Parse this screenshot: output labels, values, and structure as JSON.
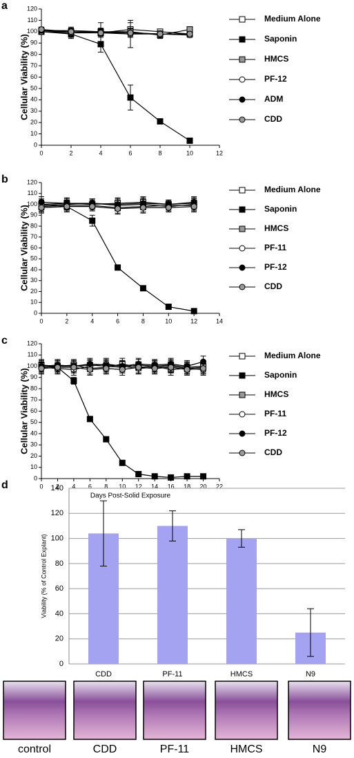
{
  "chart_data": [
    {
      "type": "line",
      "panel_label": "a",
      "y_label": "Cellular Viability (%)",
      "x": [
        0,
        2,
        4,
        6,
        8,
        10
      ],
      "xlim": [
        0,
        12
      ],
      "xticks": [
        0,
        2,
        4,
        6,
        8,
        10,
        12
      ],
      "ylim": [
        0,
        120
      ],
      "yticks": [
        0,
        10,
        20,
        30,
        40,
        50,
        60,
        70,
        80,
        90,
        100,
        110,
        120
      ],
      "series": [
        {
          "name": "Medium Alone",
          "marker": "square",
          "color": "#ffffff",
          "values": [
            100,
            100,
            99,
            102,
            100,
            98
          ],
          "errors": [
            2,
            3,
            4,
            6,
            2,
            2
          ]
        },
        {
          "name": "Saponin",
          "marker": "square",
          "color": "#000000",
          "values": [
            100,
            98,
            89,
            42,
            21,
            4
          ],
          "errors": [
            2,
            4,
            7,
            11,
            2,
            1
          ]
        },
        {
          "name": "HMCS",
          "marker": "square",
          "color": "#999999",
          "values": [
            101,
            100,
            100,
            100,
            97,
            102
          ],
          "errors": [
            3,
            3,
            3,
            3,
            3,
            2
          ]
        },
        {
          "name": "PF-12",
          "marker": "circle",
          "color": "#ffffff",
          "values": [
            100,
            99,
            99,
            98,
            98,
            97
          ],
          "errors": [
            2,
            4,
            9,
            12,
            3,
            2
          ]
        },
        {
          "name": "ADM",
          "marker": "circle",
          "color": "#000000",
          "values": [
            101,
            101,
            100,
            99,
            98,
            98
          ],
          "errors": [
            2,
            3,
            3,
            4,
            2,
            2
          ]
        },
        {
          "name": "CDD",
          "marker": "circle",
          "color": "#999999",
          "values": [
            102,
            100,
            99,
            99,
            98,
            98
          ],
          "errors": [
            2,
            3,
            3,
            4,
            2,
            2
          ]
        }
      ]
    },
    {
      "type": "line",
      "panel_label": "b",
      "y_label": "Cellular Viability (%)",
      "x": [
        0,
        2,
        4,
        6,
        8,
        10,
        12
      ],
      "xlim": [
        0,
        14
      ],
      "xticks": [
        0,
        2,
        4,
        6,
        8,
        10,
        12,
        14
      ],
      "ylim": [
        0,
        120
      ],
      "yticks": [
        0,
        10,
        20,
        30,
        40,
        50,
        60,
        70,
        80,
        90,
        100,
        110,
        120
      ],
      "series": [
        {
          "name": "Medium Alone",
          "marker": "square",
          "color": "#ffffff",
          "values": [
            100,
            101,
            100,
            101,
            102,
            100,
            101
          ],
          "errors": [
            5,
            5,
            4,
            5,
            5,
            4,
            5
          ]
        },
        {
          "name": "Saponin",
          "marker": "square",
          "color": "#000000",
          "values": [
            100,
            98,
            85,
            42,
            23,
            6,
            2
          ],
          "errors": [
            3,
            4,
            5,
            2,
            1,
            1,
            1
          ]
        },
        {
          "name": "HMCS",
          "marker": "square",
          "color": "#999999",
          "values": [
            98,
            99,
            99,
            97,
            98,
            99,
            99
          ],
          "errors": [
            5,
            5,
            4,
            5,
            5,
            4,
            5
          ]
        },
        {
          "name": "PF-11",
          "marker": "circle",
          "color": "#ffffff",
          "values": [
            99,
            100,
            101,
            99,
            100,
            98,
            100
          ],
          "errors": [
            5,
            5,
            4,
            5,
            5,
            4,
            5
          ]
        },
        {
          "name": "PF-12",
          "marker": "circle",
          "color": "#000000",
          "values": [
            102,
            101,
            101,
            100,
            101,
            100,
            102
          ],
          "errors": [
            5,
            5,
            4,
            5,
            5,
            4,
            5
          ]
        },
        {
          "name": "CDD",
          "marker": "circle",
          "color": "#999999",
          "values": [
            97,
            98,
            98,
            96,
            97,
            97,
            98
          ],
          "errors": [
            5,
            5,
            4,
            5,
            5,
            4,
            5
          ]
        }
      ]
    },
    {
      "type": "line",
      "panel_label": "c",
      "y_label": "Cellular Viability (%)",
      "x_label": "Days Post-Solid Exposure",
      "x": [
        0,
        2,
        4,
        6,
        8,
        10,
        12,
        14,
        16,
        18,
        20
      ],
      "xlim": [
        0,
        22
      ],
      "xticks": [
        0,
        2,
        4,
        6,
        8,
        10,
        12,
        14,
        16,
        18,
        20,
        22
      ],
      "ylim": [
        0,
        120
      ],
      "yticks": [
        0,
        10,
        20,
        30,
        40,
        50,
        60,
        70,
        80,
        90,
        100,
        110,
        120
      ],
      "series": [
        {
          "name": "Medium Alone",
          "marker": "square",
          "color": "#ffffff",
          "values": [
            100,
            100,
            101,
            98,
            99,
            102,
            99,
            100,
            97,
            98,
            99
          ],
          "errors": [
            5,
            5,
            5,
            5,
            5,
            5,
            5,
            5,
            5,
            5,
            5
          ]
        },
        {
          "name": "Saponin",
          "marker": "square",
          "color": "#000000",
          "values": [
            100,
            99,
            87,
            53,
            35,
            14,
            4,
            2,
            1,
            2,
            2
          ],
          "errors": [
            3,
            3,
            3,
            2,
            2,
            1,
            1,
            1,
            1,
            1,
            1
          ]
        },
        {
          "name": "HMCS",
          "marker": "square",
          "color": "#999999",
          "values": [
            101,
            100,
            100,
            101,
            100,
            99,
            101,
            100,
            101,
            99,
            100
          ],
          "errors": [
            5,
            5,
            5,
            5,
            5,
            5,
            5,
            5,
            5,
            5,
            5
          ]
        },
        {
          "name": "PF-11",
          "marker": "circle",
          "color": "#ffffff",
          "values": [
            99,
            98,
            97,
            100,
            102,
            100,
            98,
            99,
            100,
            98,
            97
          ],
          "errors": [
            5,
            5,
            5,
            5,
            5,
            5,
            5,
            5,
            5,
            5,
            5
          ]
        },
        {
          "name": "PF-12",
          "marker": "circle",
          "color": "#000000",
          "values": [
            100,
            101,
            100,
            102,
            101,
            100,
            102,
            101,
            102,
            100,
            104
          ],
          "errors": [
            5,
            5,
            5,
            5,
            5,
            5,
            5,
            5,
            5,
            5,
            5
          ]
        },
        {
          "name": "CDD",
          "marker": "circle",
          "color": "#999999",
          "values": [
            98,
            99,
            99,
            97,
            98,
            97,
            99,
            98,
            99,
            97,
            98
          ],
          "errors": [
            5,
            5,
            5,
            5,
            5,
            5,
            5,
            5,
            5,
            5,
            5
          ]
        }
      ]
    },
    {
      "type": "bar",
      "panel_label": "d",
      "y_label": "Viability (% of Control Explant)",
      "categories": [
        "CDD",
        "PF-11",
        "HMCS",
        "N9"
      ],
      "values": [
        104,
        110,
        100,
        25
      ],
      "errors": [
        26,
        12,
        7,
        19
      ],
      "color": "#a3a3f2",
      "ylim": [
        0,
        140
      ],
      "yticks": [
        0,
        20,
        40,
        60,
        80,
        100,
        120,
        140
      ],
      "grid": true
    }
  ],
  "images": {
    "labels": [
      "control",
      "CDD",
      "PF-11",
      "HMCS",
      "N9"
    ]
  }
}
